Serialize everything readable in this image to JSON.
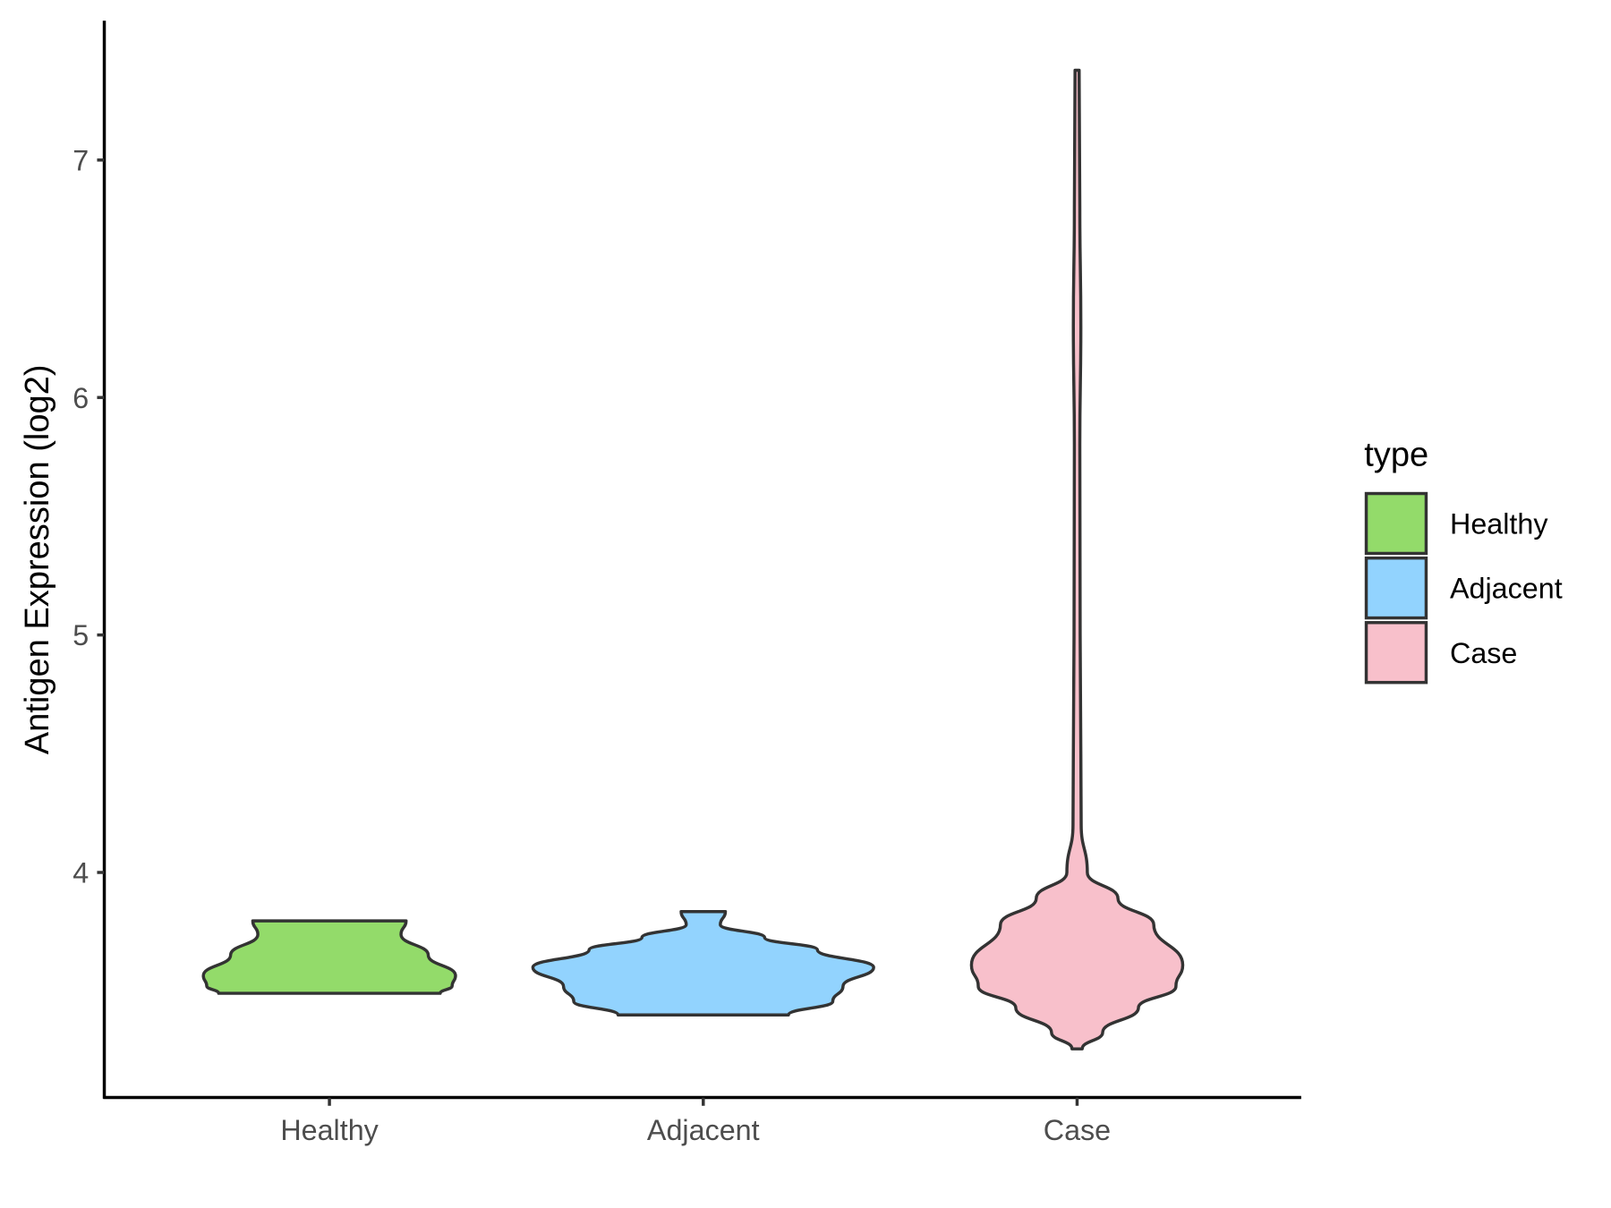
{
  "chart_data": {
    "type": "violin",
    "title": "",
    "xlabel": "",
    "ylabel": "Antigen Expression (log2)",
    "ylim": [
      3.08,
      7.6
    ],
    "yticks": [
      4,
      5,
      6,
      7
    ],
    "categories": [
      "Healthy",
      "Adjacent",
      "Case"
    ],
    "grid": false,
    "legend": {
      "title": "type",
      "placement": "right",
      "entries": [
        "Healthy",
        "Adjacent",
        "Case"
      ]
    },
    "colors": {
      "Healthy": "#93DB6A",
      "Adjacent": "#92D3FE",
      "Case": "#F8C0CB",
      "outline": "#333333"
    },
    "series": [
      {
        "category": "Healthy",
        "range": [
          3.49,
          3.796
        ],
        "profile": [
          [
            3.796,
            0.45
          ],
          [
            3.739,
            0.42
          ],
          [
            3.652,
            0.58
          ],
          [
            3.565,
            0.74
          ],
          [
            3.522,
            0.72
          ],
          [
            3.491,
            0.65
          ]
        ]
      },
      {
        "category": "Adjacent",
        "range": [
          3.4,
          3.835
        ],
        "profile": [
          [
            3.835,
            0.13
          ],
          [
            3.78,
            0.1
          ],
          [
            3.726,
            0.36
          ],
          [
            3.674,
            0.67
          ],
          [
            3.6,
            1.0
          ],
          [
            3.52,
            0.82
          ],
          [
            3.457,
            0.76
          ],
          [
            3.4,
            0.5
          ]
        ]
      },
      {
        "category": "Case",
        "range": [
          3.257,
          7.378
        ],
        "profile": [
          [
            7.378,
            0.012
          ],
          [
            6.8,
            0.016
          ],
          [
            6.3,
            0.022
          ],
          [
            5.8,
            0.016
          ],
          [
            5.0,
            0.018
          ],
          [
            4.5,
            0.022
          ],
          [
            4.2,
            0.024
          ],
          [
            4.0,
            0.06
          ],
          [
            3.89,
            0.24
          ],
          [
            3.78,
            0.45
          ],
          [
            3.61,
            0.62
          ],
          [
            3.52,
            0.58
          ],
          [
            3.43,
            0.36
          ],
          [
            3.326,
            0.15
          ],
          [
            3.257,
            0.03
          ]
        ]
      }
    ]
  }
}
